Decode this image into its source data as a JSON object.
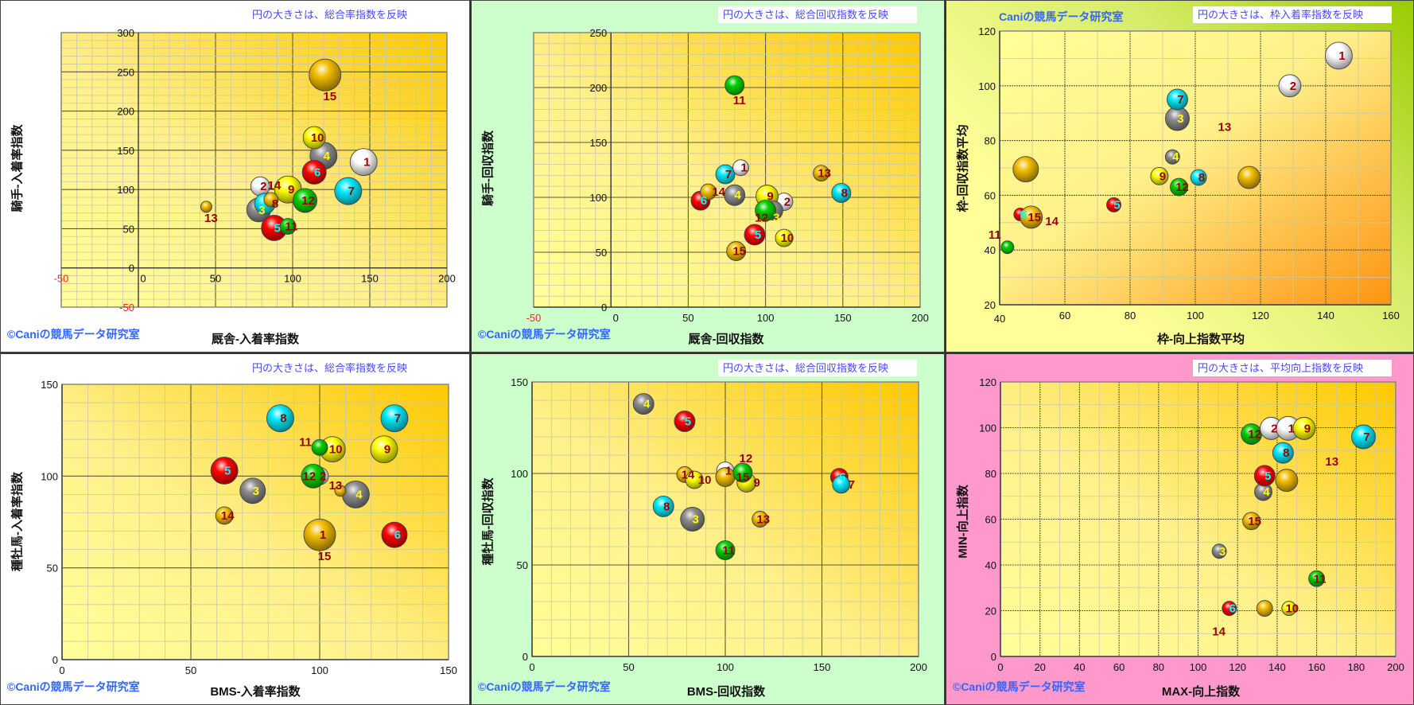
{
  "footer": "©Caniの競馬データ研究室",
  "brand": "Caniの競馬データ研究室",
  "horse_colors": {
    "1": "#ffffff",
    "2": "#ffffff",
    "3": "#8c8c8c",
    "4": "#8c8c8c",
    "5": "#ff0000",
    "6": "#ff0000",
    "7": "#00e8f8",
    "8": "#00e8f8",
    "9": "#ffff00",
    "10": "#ffff00",
    "11": "#00d000",
    "12": "#00d000",
    "13": "#f2bd00",
    "14": "#f2bd00",
    "15": "#f2bd00"
  },
  "label_colors": {
    "1": "#990000",
    "2": "#990000",
    "3": "#ffff00",
    "4": "#ffff00",
    "5": "#00ffff",
    "6": "#00ffff",
    "7": "#990000",
    "8": "#990000",
    "9": "#990000",
    "10": "#990000",
    "11": "#990000",
    "12": "#990000",
    "13": "#990000",
    "14": "#990000",
    "15": "#990000"
  },
  "chart_data": [
    {
      "type": "scatter",
      "title": "円の大きさは、総合率指数を反映",
      "xlabel": "厩舎-入着率指数",
      "ylabel": "騎手-入着率指数",
      "xlim": [
        -50,
        200
      ],
      "ylim": [
        -50,
        300
      ],
      "xticks": [
        -50,
        0,
        50,
        100,
        150,
        200
      ],
      "yticks": [
        -50,
        0,
        50,
        100,
        150,
        200,
        250,
        300
      ],
      "grid": true,
      "size_meaning": "総合率指数",
      "points": [
        {
          "n": 15,
          "label": "15",
          "x": 121,
          "y": 246,
          "size": 400,
          "label_pos": "below"
        },
        {
          "n": 1,
          "label": "1",
          "x": 146,
          "y": 135,
          "size": 289
        },
        {
          "n": 4,
          "label": "4",
          "x": 120,
          "y": 143,
          "size": 289
        },
        {
          "n": 10,
          "label": "10",
          "x": 114,
          "y": 166,
          "size": 196
        },
        {
          "n": 6,
          "label": "6",
          "x": 114,
          "y": 122,
          "size": 225
        },
        {
          "n": 7,
          "label": "7",
          "x": 136,
          "y": 98,
          "size": 289
        },
        {
          "n": 2,
          "label": "2",
          "x": 79,
          "y": 104,
          "size": 144
        },
        {
          "n": 9,
          "label": "9",
          "x": 97,
          "y": 100,
          "size": 289
        },
        {
          "n": 12,
          "label": "12",
          "x": 108,
          "y": 86,
          "size": 225
        },
        {
          "n": 3,
          "label": "3",
          "x": 78,
          "y": 74,
          "size": 225
        },
        {
          "n": 8,
          "label": "8",
          "x": 82,
          "y": 82,
          "size": 169
        },
        {
          "n": 14,
          "label": "14",
          "x": 86,
          "y": 87,
          "size": 81
        },
        {
          "n": 5,
          "label": "5",
          "x": 88,
          "y": 51,
          "size": 256
        },
        {
          "n": 11,
          "label": "11",
          "x": 97,
          "y": 53,
          "size": 100
        },
        {
          "n": 13,
          "label": "13",
          "x": 44,
          "y": 78,
          "size": 49,
          "label_pos": "below"
        }
      ],
      "floating_labels": []
    },
    {
      "type": "scatter",
      "title": "円の大きさは、総合回収指数を反映",
      "xlabel": "厩舎-回収指数",
      "ylabel": "騎手-回収指数",
      "xlim": [
        -50,
        200
      ],
      "ylim": [
        0,
        250
      ],
      "xticks": [
        -50,
        0,
        50,
        100,
        150,
        200
      ],
      "yticks": [
        0,
        50,
        100,
        150,
        200,
        250
      ],
      "grid": true,
      "size_meaning": "総合回収指数",
      "points": [
        {
          "n": 11,
          "label": "11",
          "x": 80,
          "y": 202,
          "size": 144,
          "label_pos": "below"
        },
        {
          "n": 7,
          "label": "7",
          "x": 74,
          "y": 121,
          "size": 144
        },
        {
          "n": 1,
          "label": "1",
          "x": 84,
          "y": 127,
          "size": 100
        },
        {
          "n": 6,
          "label": "6",
          "x": 58,
          "y": 97,
          "size": 144
        },
        {
          "n": 14,
          "label": "14",
          "x": 63,
          "y": 105,
          "size": 100
        },
        {
          "n": 4,
          "label": "4",
          "x": 80,
          "y": 102,
          "size": 169
        },
        {
          "n": 2,
          "label": "2",
          "x": 112,
          "y": 96,
          "size": 121
        },
        {
          "n": 9,
          "label": "9",
          "x": 101,
          "y": 101,
          "size": 196
        },
        {
          "n": 3,
          "label": "3",
          "x": 105,
          "y": 88,
          "size": 144
        },
        {
          "n": 12,
          "label": "12",
          "x": 100,
          "y": 88,
          "size": 169
        },
        {
          "n": 5,
          "label": "5",
          "x": 93,
          "y": 66,
          "size": 169
        },
        {
          "n": 10,
          "label": "10",
          "x": 112,
          "y": 63,
          "size": 121
        },
        {
          "n": 15,
          "label": "15",
          "x": 81,
          "y": 51,
          "size": 144
        },
        {
          "n": 13,
          "label": "13",
          "x": 136,
          "y": 122,
          "size": 100
        },
        {
          "n": 8,
          "label": "8",
          "x": 149,
          "y": 104,
          "size": 144
        }
      ],
      "floating_labels": []
    },
    {
      "type": "scatter",
      "title": "円の大きさは、枠入着率指数を反映",
      "xlabel": "枠-向上指数平均",
      "ylabel": "枠-回収指数平均",
      "xlim": [
        40,
        160
      ],
      "ylim": [
        20,
        120
      ],
      "xticks": [
        40,
        60,
        80,
        100,
        120,
        140,
        160
      ],
      "yticks": [
        20,
        40,
        60,
        80,
        100,
        120
      ],
      "grid": true,
      "size_meaning": "枠入着率指数",
      "points": [
        {
          "n": 1,
          "label": "1",
          "x": 144,
          "y": 111,
          "size": 289
        },
        {
          "n": 2,
          "label": "2",
          "x": 129,
          "y": 100,
          "size": 196
        },
        {
          "n": 3,
          "label": "3",
          "x": 94.5,
          "y": 88,
          "size": 225
        },
        {
          "n": 7,
          "label": "7",
          "x": 94.5,
          "y": 95,
          "size": 169
        },
        {
          "n": 4,
          "label": "4",
          "x": 93,
          "y": 74,
          "size": 81
        },
        {
          "n": 9,
          "label": "9",
          "x": 89,
          "y": 67,
          "size": 121
        },
        {
          "n": 12,
          "label": "12",
          "x": 95,
          "y": 63,
          "size": 121
        },
        {
          "n": 8,
          "label": "8",
          "x": 101,
          "y": 66.5,
          "size": 100
        },
        {
          "n": 13,
          "label": "",
          "x": 116.5,
          "y": 66.5,
          "size": 196
        },
        {
          "n": 14,
          "label": "",
          "x": 48,
          "y": 69.5,
          "size": 256
        },
        {
          "n": 6,
          "label": "6",
          "x": 46.3,
          "y": 53,
          "size": 64
        },
        {
          "n": 15,
          "label": "15",
          "x": 49.7,
          "y": 52,
          "size": 196
        },
        {
          "n": 5,
          "label": "5",
          "x": 75,
          "y": 56.5,
          "size": 81
        },
        {
          "n": 11,
          "label": "11",
          "x": 42.4,
          "y": 41,
          "size": 64,
          "label_pos": "left"
        }
      ],
      "floating_labels": [
        {
          "text": "13",
          "x": 109,
          "y": 85
        },
        {
          "text": "14",
          "x": 56,
          "y": 50.5
        }
      ]
    },
    {
      "type": "scatter",
      "title": "円の大きさは、総合率指数を反映",
      "xlabel": "BMS-入着率指数",
      "ylabel": "種牡馬-入着率指数",
      "xlim": [
        0,
        150
      ],
      "ylim": [
        0,
        150
      ],
      "xticks": [
        0,
        50,
        100,
        150
      ],
      "yticks": [
        0,
        50,
        100,
        150
      ],
      "grid": true,
      "size_meaning": "総合率指数",
      "points": [
        {
          "n": 8,
          "label": "8",
          "x": 84.7,
          "y": 131.5,
          "size": 289
        },
        {
          "n": 7,
          "label": "7",
          "x": 129,
          "y": 131.5,
          "size": 289
        },
        {
          "n": 10,
          "label": "10",
          "x": 105,
          "y": 114.6,
          "size": 256
        },
        {
          "n": 11,
          "label": "11",
          "x": 100,
          "y": 115.6,
          "size": 100,
          "label_pos": "left"
        },
        {
          "n": 9,
          "label": "9",
          "x": 125,
          "y": 114.6,
          "size": 289
        },
        {
          "n": 5,
          "label": "5",
          "x": 63,
          "y": 103,
          "size": 289
        },
        {
          "n": 2,
          "label": "2",
          "x": 100,
          "y": 100,
          "size": 121
        },
        {
          "n": 12,
          "label": "12",
          "x": 97.5,
          "y": 100,
          "size": 225
        },
        {
          "n": 3,
          "label": "3",
          "x": 74,
          "y": 92,
          "size": 256
        },
        {
          "n": 4,
          "label": "4",
          "x": 114,
          "y": 90,
          "size": 289
        },
        {
          "n": 13,
          "label": "13",
          "x": 108,
          "y": 92,
          "size": 49,
          "label_pos": "left"
        },
        {
          "n": 14,
          "label": "14",
          "x": 63,
          "y": 78.5,
          "size": 121
        },
        {
          "n": 1,
          "label": "1",
          "x": 100,
          "y": 68,
          "size": 225
        },
        {
          "n": 15,
          "label": "15",
          "x": 100,
          "y": 68,
          "size": 400,
          "label_pos": "below"
        },
        {
          "n": 6,
          "label": "6",
          "x": 129,
          "y": 68,
          "size": 256
        }
      ],
      "floating_labels": []
    },
    {
      "type": "scatter",
      "title": "円の大きさは、総合回収指数を反映",
      "xlabel": "BMS-回収指数",
      "ylabel": "種牡馬-回収指数",
      "xlim": [
        0,
        200
      ],
      "ylim": [
        0,
        150
      ],
      "xticks": [
        0,
        50,
        100,
        150,
        200
      ],
      "yticks": [
        0,
        50,
        100,
        150
      ],
      "grid": true,
      "size_meaning": "総合回収指数",
      "points": [
        {
          "n": 4,
          "label": "4",
          "x": 57.7,
          "y": 138,
          "size": 169
        },
        {
          "n": 5,
          "label": "5",
          "x": 79,
          "y": 128.5,
          "size": 169
        },
        {
          "n": 14,
          "label": "14",
          "x": 79,
          "y": 99.4,
          "size": 100
        },
        {
          "n": 10,
          "label": "10",
          "x": 84,
          "y": 96.5,
          "size": 121
        },
        {
          "n": 1,
          "label": "1",
          "x": 100,
          "y": 101.5,
          "size": 121
        },
        {
          "n": 15,
          "label": "15",
          "x": 100,
          "y": 98,
          "size": 144
        },
        {
          "n": 9,
          "label": "9",
          "x": 111,
          "y": 95,
          "size": 144
        },
        {
          "n": 12,
          "label": "12",
          "x": 109,
          "y": 100.4,
          "size": 144
        },
        {
          "n": 6,
          "label": "6",
          "x": 159,
          "y": 98,
          "size": 121
        },
        {
          "n": 7,
          "label": "7",
          "x": 160,
          "y": 94,
          "size": 121
        },
        {
          "n": 8,
          "label": "8",
          "x": 68,
          "y": 82,
          "size": 169
        },
        {
          "n": 3,
          "label": "3",
          "x": 83,
          "y": 75,
          "size": 225
        },
        {
          "n": 13,
          "label": "13",
          "x": 118,
          "y": 75,
          "size": 100
        },
        {
          "n": 11,
          "label": "11",
          "x": 100,
          "y": 58,
          "size": 144
        }
      ],
      "floating_labels": []
    },
    {
      "type": "scatter",
      "title": "円の大きさは、平均向上指数を反映",
      "xlabel": "MAX-向上指数",
      "ylabel": "MIN-向上指数",
      "xlim": [
        0,
        200
      ],
      "ylim": [
        0,
        120
      ],
      "xticks": [
        0,
        20,
        40,
        60,
        80,
        100,
        120,
        140,
        160,
        180,
        200
      ],
      "yticks": [
        0,
        20,
        40,
        60,
        80,
        100,
        120
      ],
      "grid": true,
      "size_meaning": "平均向上指数",
      "points": [
        {
          "n": 7,
          "label": "7",
          "x": 183.7,
          "y": 96,
          "size": 225
        },
        {
          "n": 12,
          "label": "12",
          "x": 127,
          "y": 97.2,
          "size": 169
        },
        {
          "n": 2,
          "label": "2",
          "x": 137,
          "y": 99.7,
          "size": 196
        },
        {
          "n": 1,
          "label": "1",
          "x": 145.6,
          "y": 99.7,
          "size": 225
        },
        {
          "n": 9,
          "label": "9",
          "x": 153.7,
          "y": 99.7,
          "size": 196
        },
        {
          "n": 8,
          "label": "8",
          "x": 143,
          "y": 89,
          "size": 169
        },
        {
          "n": 4,
          "label": "4",
          "x": 133,
          "y": 72,
          "size": 121
        },
        {
          "n": 5,
          "label": "5",
          "x": 133.7,
          "y": 79,
          "size": 169
        },
        {
          "n": 13,
          "label": "",
          "x": 144.8,
          "y": 77,
          "size": 196
        },
        {
          "n": 15,
          "label": "15",
          "x": 127,
          "y": 59.2,
          "size": 121
        },
        {
          "n": 3,
          "label": "3",
          "x": 110.7,
          "y": 46,
          "size": 81
        },
        {
          "n": 11,
          "label": "11",
          "x": 160,
          "y": 34,
          "size": 100
        },
        {
          "n": 6,
          "label": "6",
          "x": 115.8,
          "y": 21,
          "size": 81
        },
        {
          "n": 14,
          "label": "",
          "x": 133.7,
          "y": 21,
          "size": 100
        },
        {
          "n": 10,
          "label": "10",
          "x": 146,
          "y": 21,
          "size": 81
        }
      ],
      "floating_labels": [
        {
          "text": "13",
          "x": 167.7,
          "y": 85.3
        },
        {
          "text": "14",
          "x": 110.5,
          "y": 11
        }
      ]
    }
  ]
}
